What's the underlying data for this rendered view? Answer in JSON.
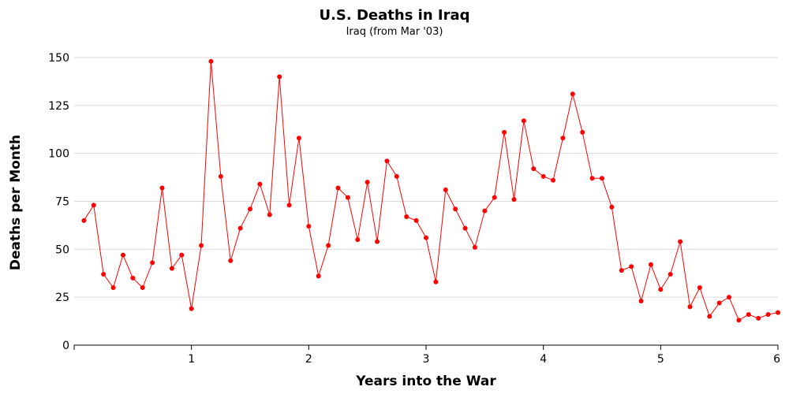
{
  "chart_data": {
    "type": "line",
    "title": "U.S. Deaths in Iraq",
    "subtitle": "Iraq (from Mar '03)",
    "xlabel": "Years into the War",
    "ylabel": "Deaths per Month",
    "xlim": [
      0,
      6
    ],
    "ylim": [
      0,
      150
    ],
    "x_ticks": [
      1,
      2,
      3,
      4,
      5,
      6
    ],
    "y_ticks": [
      0,
      25,
      50,
      75,
      100,
      125,
      150
    ],
    "grid": "horizontal",
    "color": "#ff0000",
    "series": [
      {
        "values": [
          65,
          73,
          37,
          30,
          47,
          35,
          30,
          43,
          82,
          40,
          47,
          19,
          52,
          148,
          88,
          44,
          61,
          71,
          84,
          68,
          140,
          73,
          108,
          62,
          36,
          52,
          82,
          77,
          55,
          85,
          54,
          96,
          88,
          67,
          65,
          56,
          33,
          81,
          71,
          61,
          51,
          70,
          77,
          111,
          76,
          117,
          92,
          88,
          86,
          108,
          131,
          111,
          87,
          87,
          72,
          39,
          41,
          23,
          42,
          29,
          37,
          54,
          20,
          30,
          15,
          22,
          25,
          13,
          16,
          14,
          16,
          17
        ]
      }
    ]
  }
}
